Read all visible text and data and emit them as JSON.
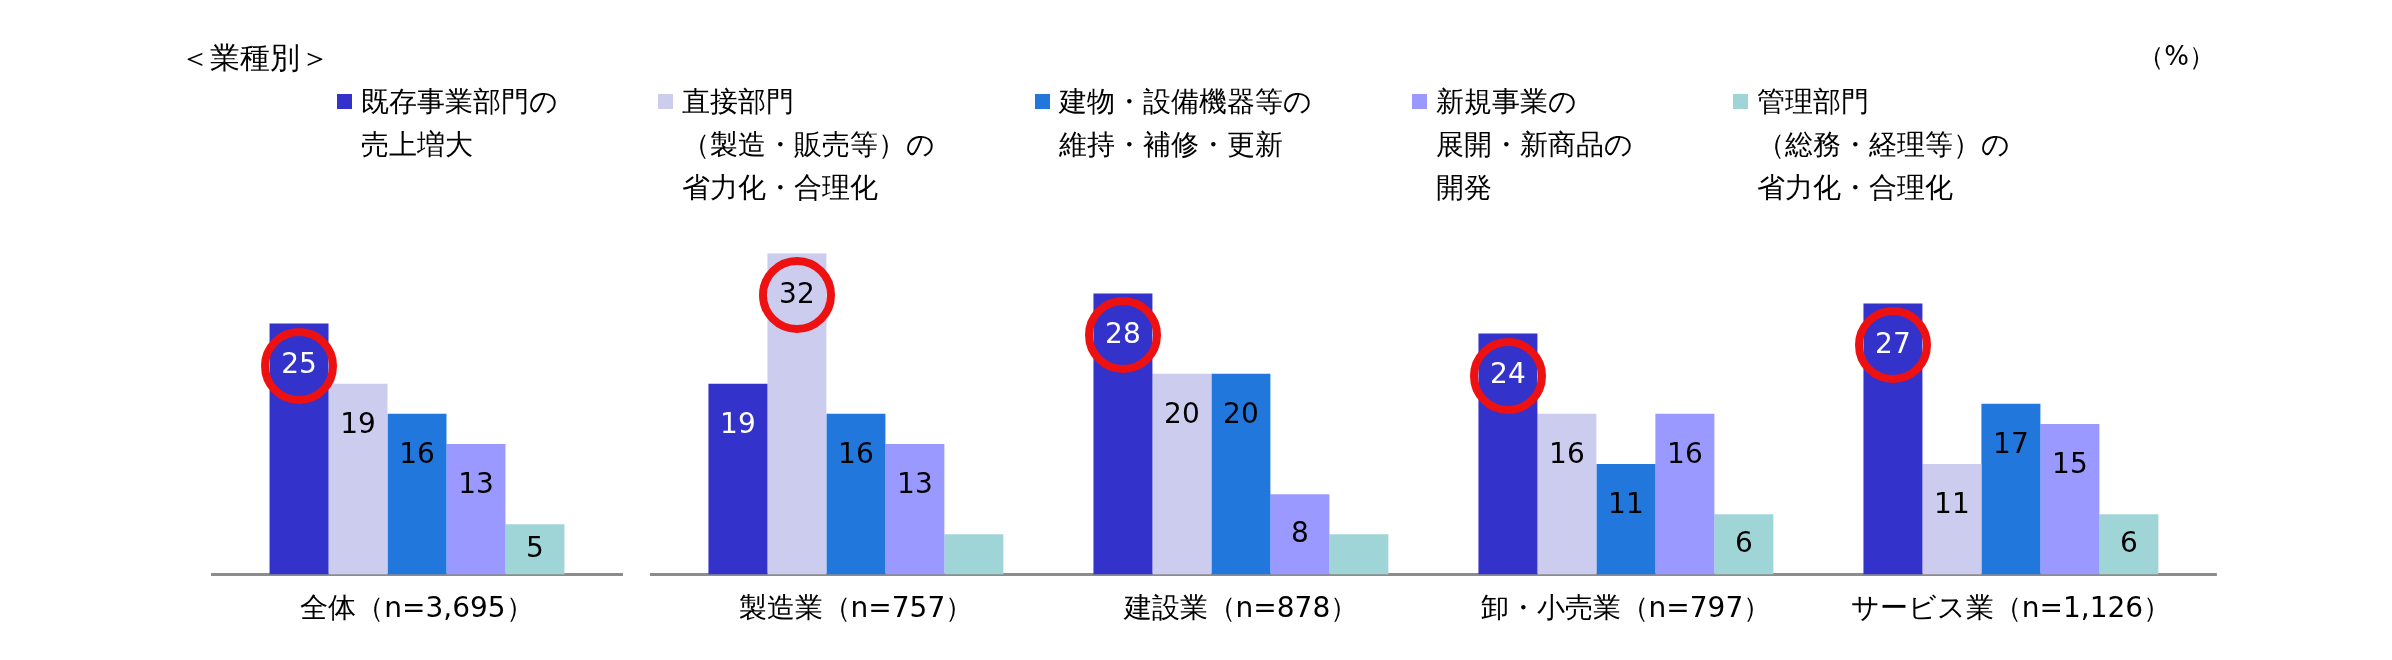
{
  "chart_data": {
    "type": "bar",
    "title": "＜業種別＞",
    "categories": [
      "全体（n=3,695）",
      "製造業（n=757）",
      "建設業（n=878）",
      "卸・小売業（n=797）",
      "サービス業（n=1,126）"
    ],
    "series": [
      {
        "name": "既存事業部門の売上増大",
        "color": "#3333cc",
        "values": [
          25,
          19,
          28,
          24,
          27
        ],
        "value_labels": [
          "25",
          "19",
          "28",
          "24",
          "27"
        ]
      },
      {
        "name": "直接部門（製造・販売等）の省力化・合理化",
        "color": "#ccccee",
        "values": [
          19,
          32,
          20,
          16,
          11
        ],
        "value_labels": [
          "19",
          "32",
          "20",
          "16",
          "11"
        ]
      },
      {
        "name": "建物・設備機器等の維持・補修・更新",
        "color": "#2277dd",
        "values": [
          16,
          16,
          20,
          11,
          17
        ],
        "value_labels": [
          "16",
          "16",
          "20",
          "11",
          "17"
        ]
      },
      {
        "name": "新規事業の展開・新商品の開発",
        "color": "#9999ff",
        "values": [
          13,
          13,
          8,
          16,
          15
        ],
        "value_labels": [
          "13",
          "13",
          "8",
          "16",
          "15"
        ]
      },
      {
        "name": "管理部門（総務・経理等）の省力化・合理化",
        "color": "#a0d5d8",
        "values": [
          5,
          4,
          4,
          6,
          6
        ],
        "value_labels": [
          "5",
          null,
          null,
          "6",
          "6"
        ]
      }
    ],
    "legend": "top",
    "annotations": [
      "（%）"
    ]
  }
}
